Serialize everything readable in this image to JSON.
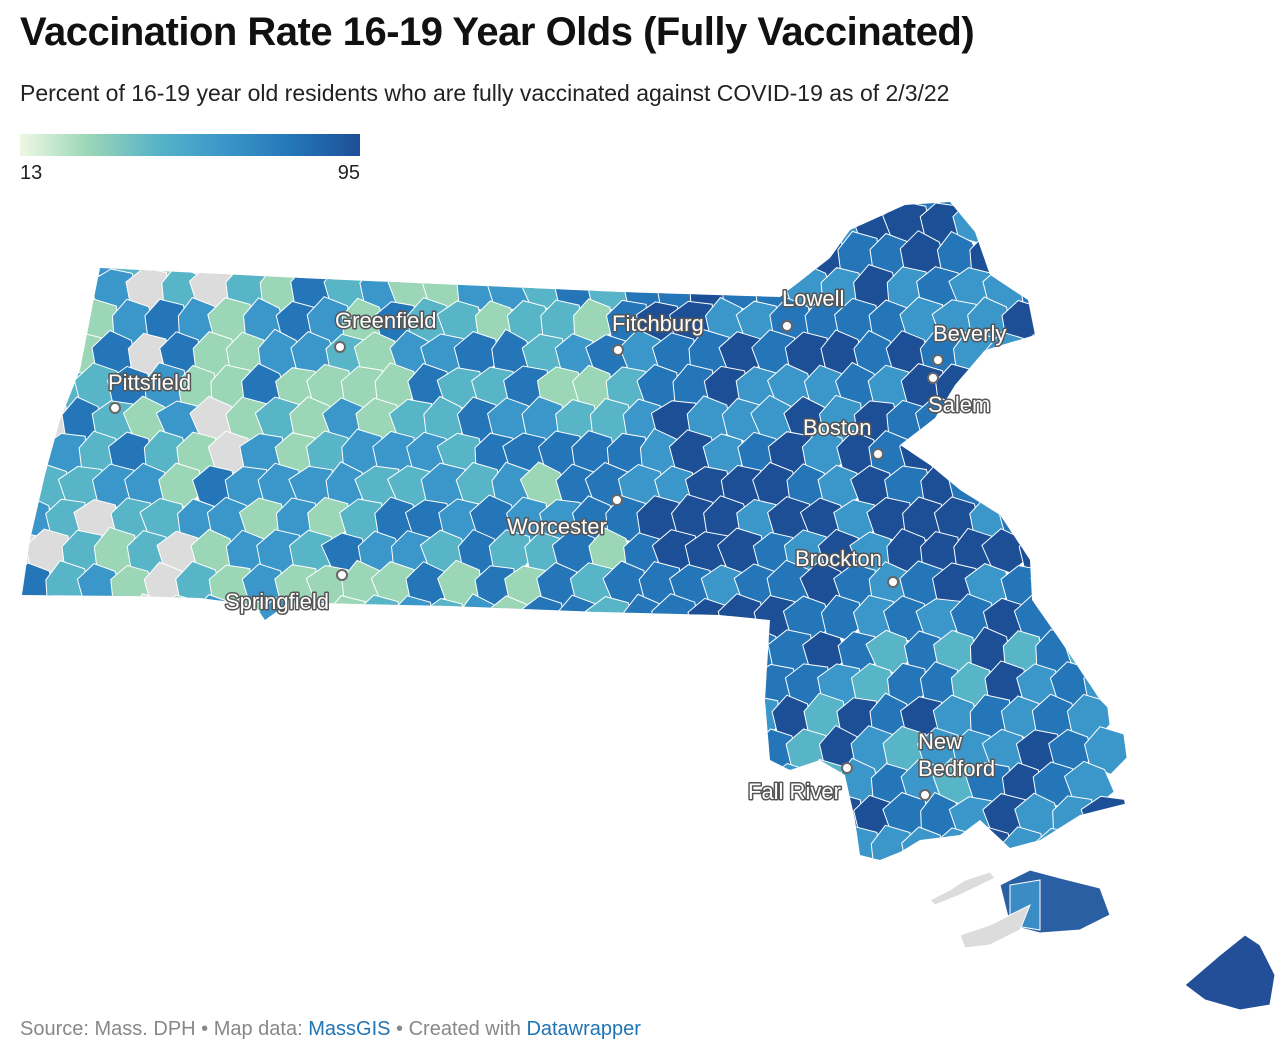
{
  "header": {
    "title": "Vaccination Rate 16-19 Year Olds (Fully Vaccinated)",
    "subtitle": "Percent of 16-19 year old residents who are fully vaccinated against COVID-19 as of 2/3/22"
  },
  "legend": {
    "min_label": "13",
    "max_label": "95",
    "min_value": 13,
    "max_value": 95,
    "colors": [
      "#eef8e4",
      "#9bd6b7",
      "#58b4c7",
      "#3b96c9",
      "#2576b8",
      "#1d4f96"
    ],
    "no_data_color": "#dcdcdc"
  },
  "cities": [
    {
      "name": "Greenfield"
    },
    {
      "name": "Fitchburg"
    },
    {
      "name": "Lowell"
    },
    {
      "name": "Beverly"
    },
    {
      "name": "Salem"
    },
    {
      "name": "Pittsfield"
    },
    {
      "name": "Boston"
    },
    {
      "name": "Worcester"
    },
    {
      "name": "Brockton"
    },
    {
      "name": "Springfield"
    },
    {
      "name": "New Bedford"
    },
    {
      "name": "Fall River"
    }
  ],
  "footer": {
    "source_text": "Source: Mass. DPH • Map data: ",
    "massgis_link": "MassGIS",
    "created_text": " • Created with ",
    "datawrapper_link": "Datawrapper"
  }
}
